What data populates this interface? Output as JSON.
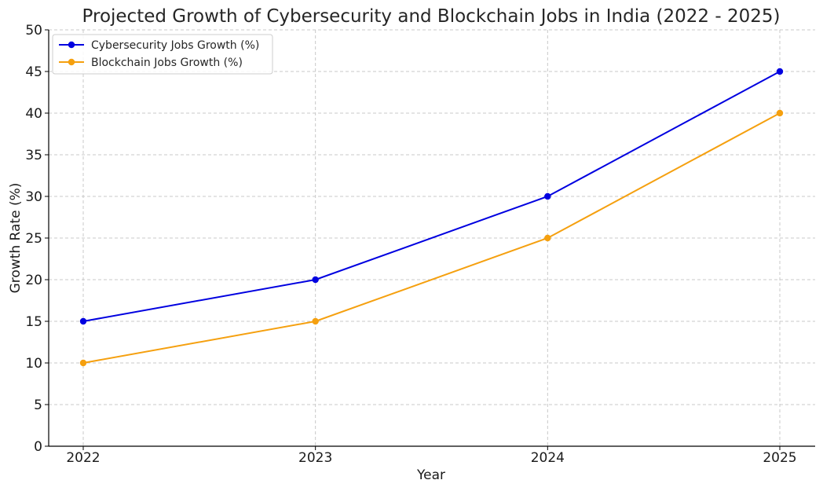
{
  "chart_data": {
    "type": "line",
    "title": "Projected Growth of Cybersecurity and Blockchain Jobs in India (2022 - 2025)",
    "xlabel": "Year",
    "ylabel": "Growth Rate (%)",
    "categories": [
      "2022",
      "2023",
      "2024",
      "2025"
    ],
    "ylim": [
      0,
      50
    ],
    "yticks": [
      0,
      5,
      10,
      15,
      20,
      25,
      30,
      35,
      40,
      45,
      50
    ],
    "grid": true,
    "legend_position": "top-left",
    "series": [
      {
        "name": "Cybersecurity Jobs Growth (%)",
        "values": [
          15,
          20,
          30,
          45
        ],
        "color": "#0000e0",
        "marker": "circle"
      },
      {
        "name": "Blockchain Jobs Growth (%)",
        "values": [
          10,
          15,
          25,
          40
        ],
        "color": "#f5a00f",
        "marker": "circle"
      }
    ]
  }
}
